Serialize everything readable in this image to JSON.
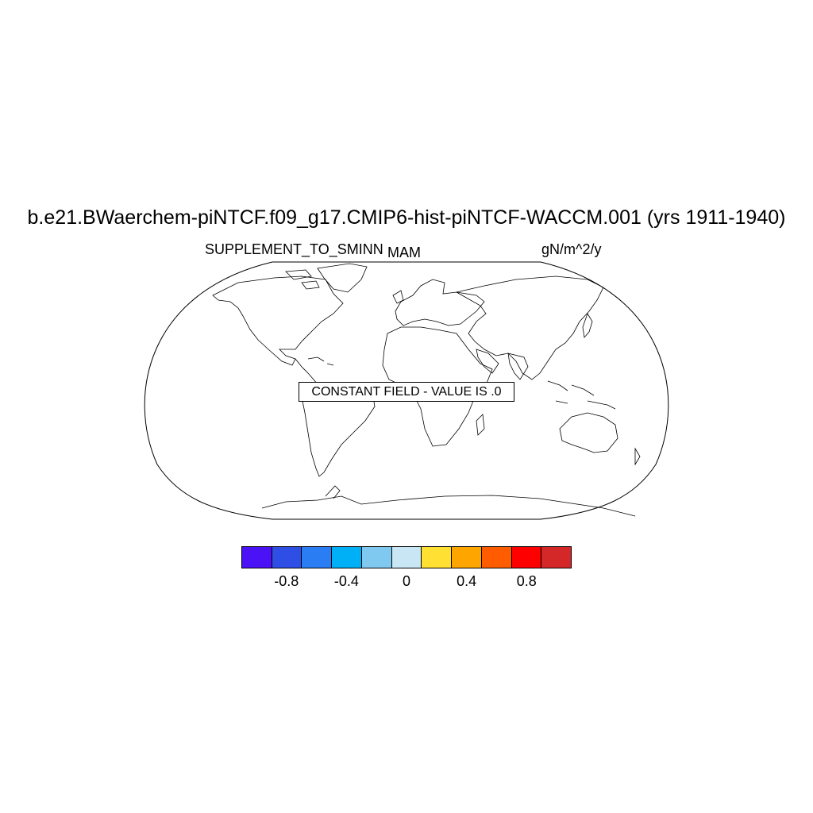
{
  "title": "b.e21.BWaerchem-piNTCF.f09_g17.CMIP6-hist-piNTCF-WACCM.001 (yrs 1911-1940)",
  "left_string": "SUPPLEMENT_TO_SMINN",
  "center_string": "MAM",
  "right_string": "gN/m^2/y",
  "constant_field_text": "CONSTANT FIELD - VALUE IS .0",
  "map": {
    "projection": "Robinson",
    "coastlines": true,
    "field_value": 0.0
  },
  "colorbar": {
    "colors": [
      "#4b12f5",
      "#2e4ee6",
      "#2a7df2",
      "#00b0f7",
      "#7fc8ef",
      "#c9e6f5",
      "#ffe033",
      "#ffa500",
      "#ff5c00",
      "#ff0000",
      "#d42828"
    ],
    "labels": [
      "-0.8",
      "-0.4",
      "0",
      "0.4",
      "0.8"
    ],
    "label_values": [
      -0.8,
      -0.4,
      0,
      0.4,
      0.8
    ],
    "range": [
      -1.1,
      1.1
    ]
  }
}
